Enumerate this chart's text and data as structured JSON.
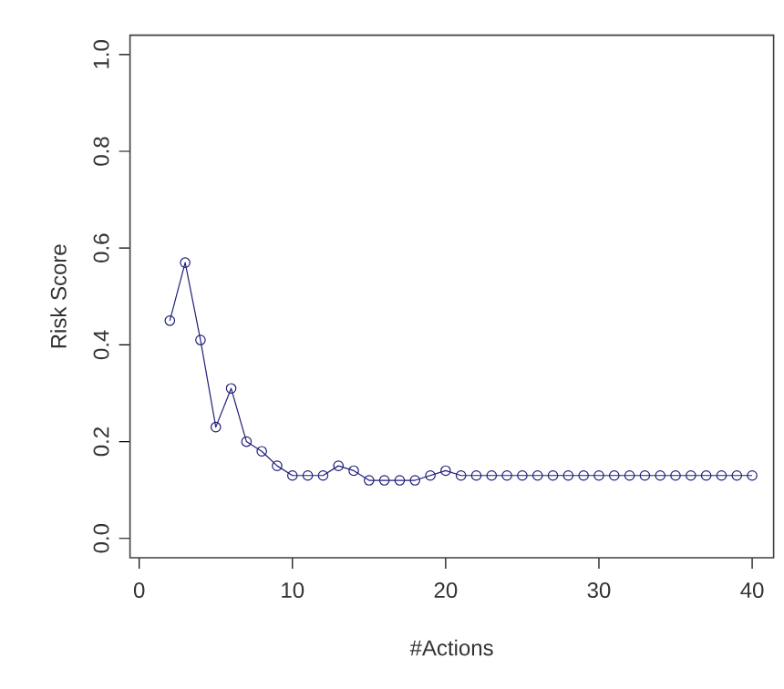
{
  "chart_data": {
    "type": "line",
    "xlabel": "#Actions",
    "ylabel": "Risk Score",
    "x": [
      2,
      3,
      4,
      5,
      6,
      7,
      8,
      9,
      10,
      11,
      12,
      13,
      14,
      15,
      16,
      17,
      18,
      19,
      20,
      21,
      22,
      23,
      24,
      25,
      26,
      27,
      28,
      29,
      30,
      31,
      32,
      33,
      34,
      35,
      36,
      37,
      38,
      39,
      40
    ],
    "series": [
      {
        "color": "#1f1f7a",
        "values": [
          0.45,
          0.57,
          0.41,
          0.23,
          0.31,
          0.2,
          0.18,
          0.15,
          0.13,
          0.13,
          0.13,
          0.15,
          0.14,
          0.12,
          0.12,
          0.12,
          0.12,
          0.13,
          0.14,
          0.13,
          0.13,
          0.13,
          0.13,
          0.13,
          0.13,
          0.13,
          0.13,
          0.13,
          0.13,
          0.13,
          0.13,
          0.13,
          0.13,
          0.13,
          0.13,
          0.13,
          0.13,
          0.13,
          0.13
        ]
      }
    ],
    "xlim": [
      -0.6,
      41.4
    ],
    "ylim": [
      -0.04,
      1.04
    ],
    "xticks": [
      0,
      10,
      20,
      30,
      40
    ],
    "yticks": [
      {
        "value": 0,
        "label": "0.0"
      },
      0.2,
      0.4,
      0.6,
      0.8,
      {
        "value": 1,
        "label": "1.0"
      }
    ],
    "marker": "circle",
    "line_style": "solid",
    "grid": false
  }
}
